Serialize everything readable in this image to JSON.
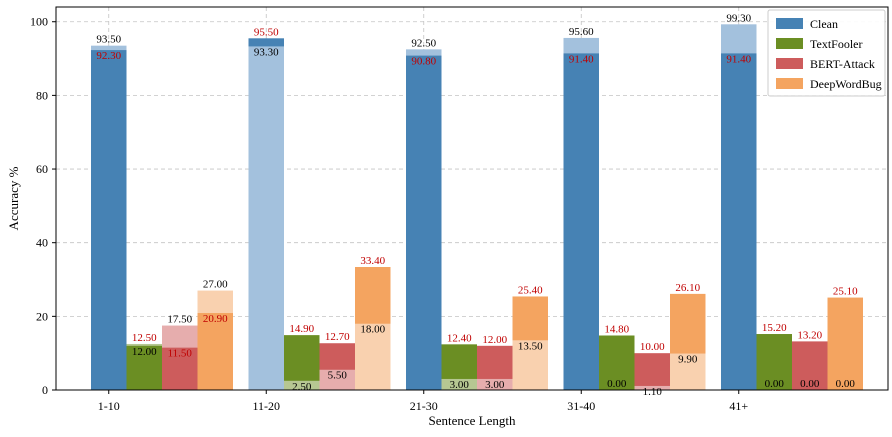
{
  "chart_data": {
    "type": "bar",
    "title": "",
    "xlabel": "Sentence Length",
    "ylabel": "Accuracy %",
    "ylim": [
      0,
      104
    ],
    "yticks": [
      0,
      20,
      40,
      60,
      80,
      100
    ],
    "grid": true,
    "legend_position": "top-right",
    "categories": [
      "1-10",
      "11-20",
      "21-30",
      "31-40",
      "41+"
    ],
    "series": [
      {
        "name": "Clean",
        "color": "#4682B4",
        "light_color": "#A3C1DD",
        "values": [
          92.3,
          95.5,
          90.8,
          91.4,
          91.4
        ],
        "overlay_values": [
          93.5,
          93.3,
          92.5,
          95.6,
          99.3
        ]
      },
      {
        "name": "TextFooler",
        "color": "#6B8E23",
        "light_color": "#B6C792",
        "values": [
          12.0,
          14.9,
          12.4,
          14.8,
          15.2
        ],
        "overlay_values": [
          12.5,
          2.5,
          3.0,
          0.0,
          0.0
        ]
      },
      {
        "name": "BERT-Attack",
        "color": "#CD5C5C",
        "light_color": "#E6ADAD",
        "values": [
          11.5,
          12.7,
          12.0,
          10.0,
          13.2
        ],
        "overlay_values": [
          17.5,
          5.5,
          3.0,
          1.1,
          0.0
        ]
      },
      {
        "name": "DeepWordBug",
        "color": "#F4A460",
        "light_color": "#F9D1AF",
        "values": [
          20.9,
          33.4,
          25.4,
          26.1,
          25.1
        ],
        "overlay_values": [
          27.0,
          18.0,
          13.5,
          9.9,
          0.0
        ]
      }
    ],
    "data_labels": [
      [
        {
          "top": {
            "text": "93.50",
            "color": "#000000"
          },
          "bottom": {
            "text": "92.30",
            "color": "#C00000"
          }
        },
        {
          "top": {
            "text": "12.50",
            "color": "#C00000"
          },
          "bottom": {
            "text": "12.00",
            "color": "#000000"
          }
        },
        {
          "top": {
            "text": "17.50",
            "color": "#000000"
          },
          "bottom": {
            "text": "11.50",
            "color": "#C00000"
          }
        },
        {
          "top": {
            "text": "27.00",
            "color": "#000000"
          },
          "bottom": {
            "text": "20.90",
            "color": "#C00000"
          }
        }
      ],
      [
        {
          "top": {
            "text": "95.50",
            "color": "#C00000"
          },
          "bottom": {
            "text": "93.30",
            "color": "#000000"
          }
        },
        {
          "top": {
            "text": "14.90",
            "color": "#C00000"
          },
          "bottom": {
            "text": "2.50",
            "color": "#000000"
          }
        },
        {
          "top": {
            "text": "12.70",
            "color": "#C00000"
          },
          "bottom": {
            "text": "5.50",
            "color": "#000000"
          }
        },
        {
          "top": {
            "text": "33.40",
            "color": "#C00000"
          },
          "bottom": {
            "text": "18.00",
            "color": "#000000"
          }
        }
      ],
      [
        {
          "top": {
            "text": "92.50",
            "color": "#000000"
          },
          "bottom": {
            "text": "90.80",
            "color": "#C00000"
          }
        },
        {
          "top": {
            "text": "12.40",
            "color": "#C00000"
          },
          "bottom": {
            "text": "3.00",
            "color": "#000000"
          }
        },
        {
          "top": {
            "text": "12.00",
            "color": "#C00000"
          },
          "bottom": {
            "text": "3.00",
            "color": "#000000"
          }
        },
        {
          "top": {
            "text": "25.40",
            "color": "#C00000"
          },
          "bottom": {
            "text": "13.50",
            "color": "#000000"
          }
        }
      ],
      [
        {
          "top": {
            "text": "95.60",
            "color": "#000000"
          },
          "bottom": {
            "text": "91.40",
            "color": "#C00000"
          }
        },
        {
          "top": {
            "text": "14.80",
            "color": "#C00000"
          },
          "bottom": {
            "text": "0.00",
            "color": "#000000"
          }
        },
        {
          "top": {
            "text": "10.00",
            "color": "#C00000"
          },
          "bottom": {
            "text": "1.10",
            "color": "#000000"
          }
        },
        {
          "top": {
            "text": "26.10",
            "color": "#C00000"
          },
          "bottom": {
            "text": "9.90",
            "color": "#000000"
          }
        }
      ],
      [
        {
          "top": {
            "text": "99.30",
            "color": "#000000"
          },
          "bottom": {
            "text": "91.40",
            "color": "#C00000"
          }
        },
        {
          "top": {
            "text": "15.20",
            "color": "#C00000"
          },
          "bottom": {
            "text": "0.00",
            "color": "#000000"
          }
        },
        {
          "top": {
            "text": "13.20",
            "color": "#C00000"
          },
          "bottom": {
            "text": "0.00",
            "color": "#000000"
          }
        },
        {
          "top": {
            "text": "25.10",
            "color": "#C00000"
          },
          "bottom": {
            "text": "0.00",
            "color": "#000000"
          }
        }
      ]
    ]
  }
}
